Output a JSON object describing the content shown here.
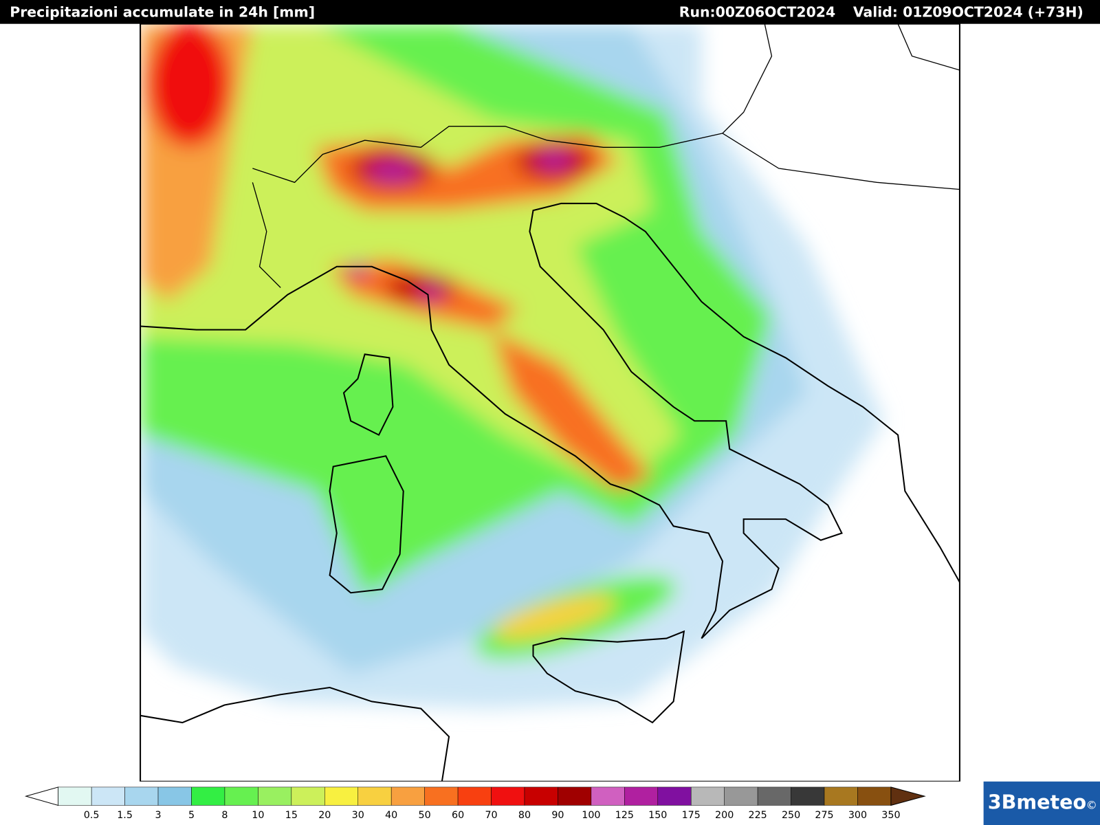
{
  "header": {
    "title": "Precipitazioni accumulate in 24h [mm]",
    "run": "Run:00Z06OCT2024",
    "valid": "Valid: 01Z09OCT2024 (+73H)"
  },
  "legend": {
    "labels": [
      0.5,
      1.5,
      3,
      5,
      8,
      10,
      15,
      20,
      30,
      40,
      50,
      60,
      70,
      80,
      90,
      100,
      125,
      150,
      175,
      200,
      225,
      250,
      275,
      300,
      350
    ],
    "colors": [
      "#ffffff",
      "#e2f8f2",
      "#cce6f6",
      "#a8d6ee",
      "#88c6e6",
      "#33ee44",
      "#66f050",
      "#99f060",
      "#ccf05a",
      "#f8f040",
      "#f8d040",
      "#f8a040",
      "#f87020",
      "#f84010",
      "#f01010",
      "#c80000",
      "#a00000",
      "#d060c0",
      "#b020a0",
      "#8010a0",
      "#b8b8b8",
      "#989898",
      "#686868",
      "#383838",
      "#a87820",
      "#885010",
      "#603010"
    ]
  },
  "logo": "3Bmeteo",
  "copyright": "©"
}
